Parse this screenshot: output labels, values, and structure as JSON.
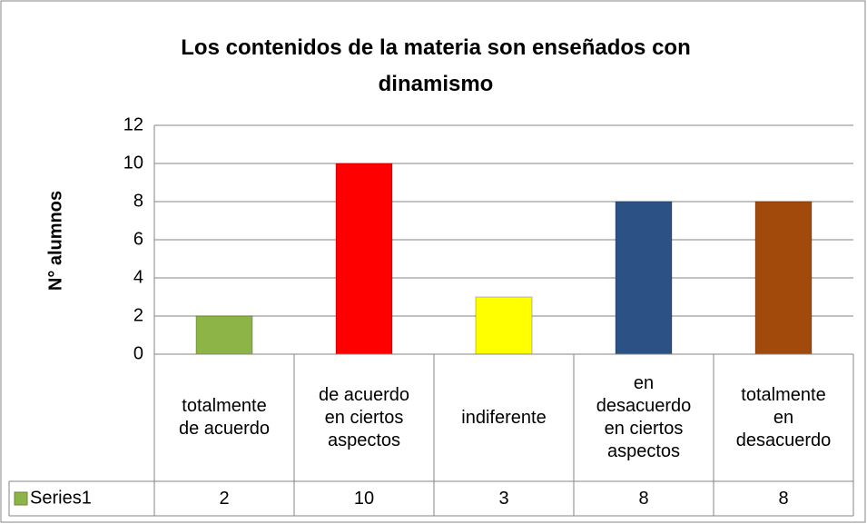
{
  "chart_data": {
    "type": "bar",
    "title": "Los contenidos de la materia son enseñados con dinamismo",
    "y_label": "N° alumnos",
    "categories": [
      "totalmente de acuerdo",
      "de acuerdo en ciertos aspectos",
      "indiferente",
      "en desacuerdo en ciertos aspectos",
      "totalmente en desacuerdo"
    ],
    "series": [
      {
        "name": "Series1",
        "colors": [
          "#8db446",
          "#ff0000",
          "#ffff00",
          "#2b5185",
          "#a24a0b"
        ],
        "values": [
          2,
          10,
          3,
          8,
          8
        ]
      }
    ],
    "ylim": [
      0,
      12
    ],
    "yticks": [
      0,
      2,
      4,
      6,
      8,
      10,
      12
    ],
    "grid": true,
    "data_table": true
  }
}
